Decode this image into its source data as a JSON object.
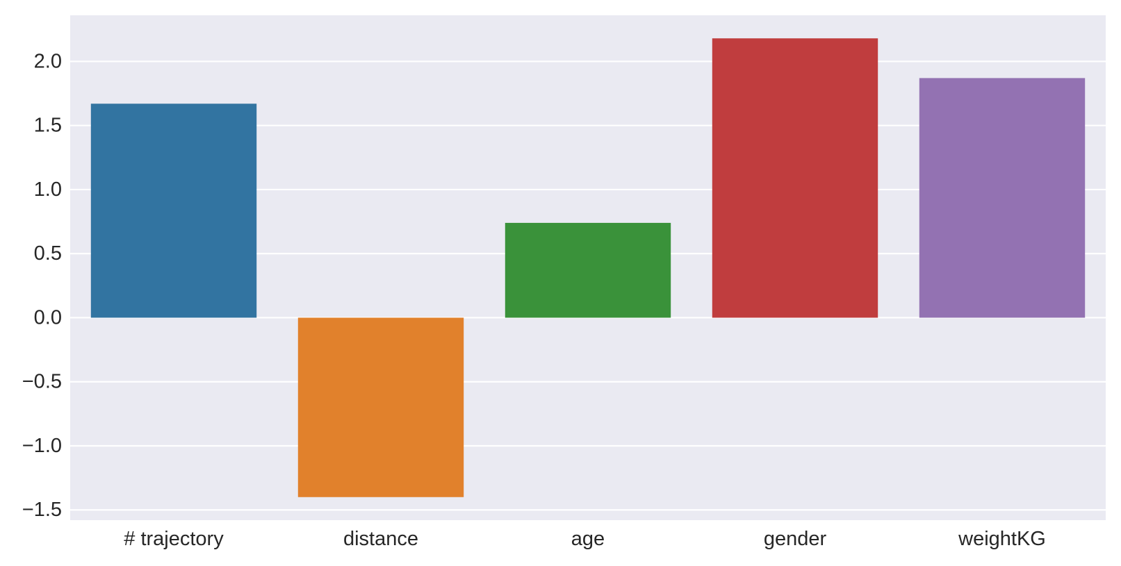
{
  "chart_data": {
    "type": "bar",
    "categories": [
      "# trajectory",
      "distance",
      "age",
      "gender",
      "weightKG"
    ],
    "values": [
      1.67,
      -1.4,
      0.74,
      2.18,
      1.87
    ],
    "colors": [
      "#3274a1",
      "#e1812c",
      "#3a923a",
      "#c03d3e",
      "#9372b2"
    ],
    "title": "",
    "xlabel": "",
    "ylabel": "",
    "ylim": [
      -1.58,
      2.36
    ],
    "yticks": [
      2.0,
      1.5,
      1.0,
      0.5,
      0.0,
      -0.5,
      -1.0,
      -1.5
    ],
    "ytick_labels": [
      "2.0",
      "1.5",
      "1.0",
      "0.5",
      "0.0",
      "−0.5",
      "−1.0",
      "−1.5"
    ],
    "grid": true,
    "style": {
      "background": "#eaeaf2",
      "grid_color": "#ffffff"
    }
  }
}
